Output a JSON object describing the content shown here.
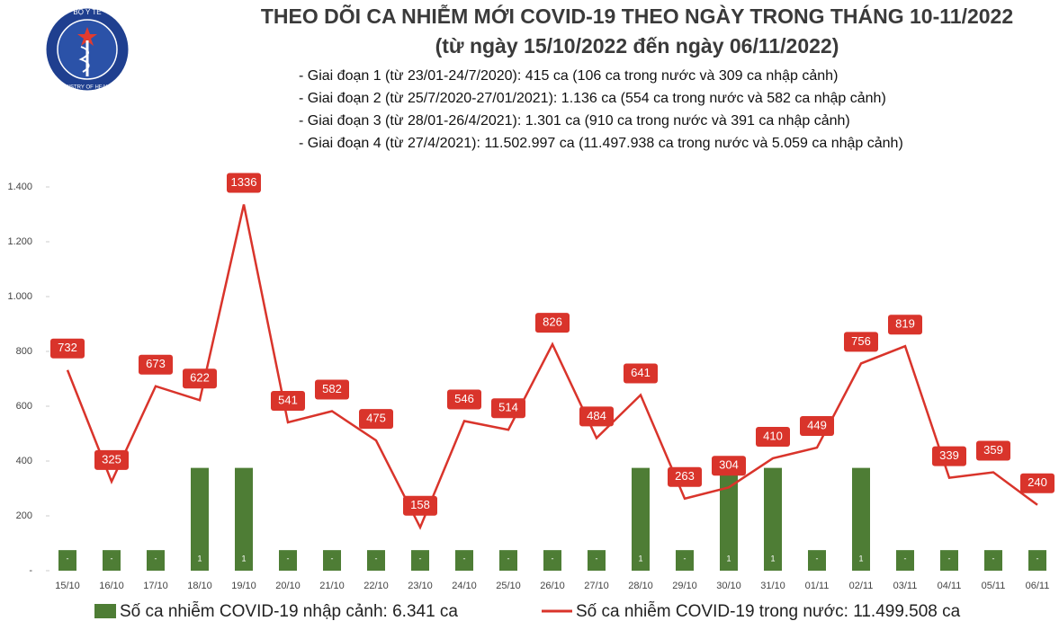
{
  "logo": {
    "top": "BỘ Y TẾ",
    "bottom": "MINISTRY OF HEALTH"
  },
  "chart_data": {
    "type": "bar-line",
    "title": "THEO DÕI CA NHIỄM MỚI COVID-19 THEO NGÀY TRONG THÁNG 10-11/2022",
    "subtitle": "(từ ngày 15/10/2022 đến ngày 06/11/2022)",
    "annotations": [
      "- Giai đoạn 1 (từ 23/01-24/7/2020): 415 ca (106 ca trong nước và 309 ca nhập cảnh)",
      "- Giai đoạn 2 (từ 25/7/2020-27/01/2021): 1.136 ca (554 ca trong nước và 582 ca nhập cảnh)",
      "- Giai đoạn 3 (từ 28/01-26/4/2021): 1.301 ca (910 ca trong nước và 391 ca nhập cảnh)",
      "- Giai đoạn 4 (từ 27/4/2021): 11.502.997 ca (11.497.938 ca trong nước và 5.059 ca nhập cảnh)"
    ],
    "categories": [
      "15/10",
      "16/10",
      "17/10",
      "18/10",
      "19/10",
      "20/10",
      "21/10",
      "22/10",
      "23/10",
      "24/10",
      "25/10",
      "26/10",
      "27/10",
      "28/10",
      "29/10",
      "30/10",
      "31/10",
      "01/11",
      "02/11",
      "03/11",
      "04/11",
      "05/11",
      "06/11"
    ],
    "series": [
      {
        "name": "Số ca nhiễm COVID-19 nhập cảnh: 6.341 ca",
        "type": "bar",
        "axis": "y2",
        "color": "#4e7d35",
        "values": [
          0,
          0,
          0,
          1,
          1,
          0,
          0,
          0,
          0,
          0,
          0,
          0,
          0,
          1,
          0,
          1,
          1,
          0,
          1,
          0,
          0,
          0,
          0
        ],
        "value_labels": [
          "-",
          "-",
          "-",
          "1",
          "1",
          "-",
          "-",
          "-",
          "-",
          "-",
          "-",
          "-",
          "-",
          "1",
          "-",
          "1",
          "1",
          "-",
          "1",
          "-",
          "-",
          "-",
          "-"
        ]
      },
      {
        "name": "Số ca nhiễm COVID-19 trong nước: 11.499.508 ca",
        "type": "line",
        "color": "#d9342b",
        "values": [
          732,
          325,
          673,
          622,
          1336,
          541,
          582,
          475,
          158,
          546,
          514,
          826,
          484,
          641,
          263,
          304,
          410,
          449,
          756,
          819,
          339,
          359,
          240
        ]
      }
    ],
    "ylim": [
      0,
      1400
    ],
    "yticks": [
      {
        "value": 0,
        "label": "-"
      },
      200,
      400,
      600,
      800,
      {
        "value": 1000,
        "label": "1.000"
      },
      {
        "value": 1200,
        "label": "1.200"
      },
      {
        "value": 1400,
        "label": "1.400"
      }
    ],
    "y2lim": [
      -0.25,
      4.4167
    ],
    "grid": false
  }
}
